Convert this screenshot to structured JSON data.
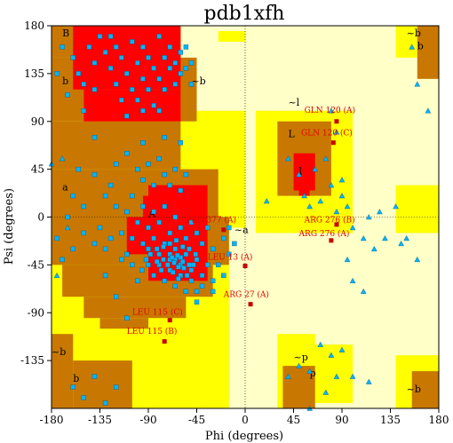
{
  "chart_data": {
    "type": "scatter",
    "title": "pdb1xfh",
    "xlabel": "Phi (degrees)",
    "ylabel": "Psi (degrees)",
    "xlim": [
      -180,
      180
    ],
    "ylim": [
      -180,
      180
    ],
    "xticks": [
      "-180",
      "-135",
      "-90",
      "-45",
      "0",
      "45",
      "90",
      "135",
      "180"
    ],
    "xtick_values": [
      -180,
      -135,
      -90,
      -45,
      0,
      45,
      90,
      135,
      180
    ],
    "yticks": [
      "180",
      "135",
      "90",
      "45",
      "0",
      "-45",
      "-90",
      "-135"
    ],
    "ytick_values": [
      180,
      135,
      90,
      45,
      0,
      -45,
      -90,
      -135
    ],
    "colors": {
      "core": "#ff0000",
      "allowed": "#c87800",
      "generous": "#ffff00",
      "disallowed": "#ffffc8",
      "residue": "#00b4ff",
      "outlier": "#c80000",
      "outlier_text": "#e00000"
    },
    "regions": {
      "generous": [
        [
          -180,
          180,
          -45,
          180
        ],
        [
          -180,
          -180,
          -15,
          90
        ],
        [
          -180,
          -180,
          -30,
          -80
        ],
        [
          -180,
          -135,
          -90,
          -180
        ],
        [
          -30,
          80,
          -15,
          45
        ],
        [
          -45,
          100,
          0,
          30
        ],
        [
          10,
          100,
          100,
          -15
        ],
        [
          30,
          -110,
          65,
          -180
        ],
        [
          60,
          -120,
          100,
          -175
        ],
        [
          140,
          30,
          180,
          -15
        ],
        [
          140,
          180,
          180,
          150
        ],
        [
          140,
          -130,
          180,
          -180
        ],
        [
          -15,
          30,
          0,
          -10
        ],
        [
          -25,
          175,
          0,
          165
        ],
        [
          -170,
          -170,
          -140,
          -180
        ]
      ],
      "allowed": [
        [
          -180,
          180,
          -60,
          150
        ],
        [
          -180,
          150,
          -45,
          90
        ],
        [
          -180,
          90,
          -60,
          45
        ],
        [
          -180,
          45,
          -25,
          0
        ],
        [
          -180,
          0,
          -15,
          -45
        ],
        [
          -170,
          -45,
          -30,
          -75
        ],
        [
          -150,
          -75,
          -55,
          -95
        ],
        [
          -135,
          -95,
          -90,
          -105
        ],
        [
          -180,
          -110,
          -160,
          -180
        ],
        [
          -160,
          -135,
          -105,
          -180
        ],
        [
          -150,
          -165,
          -120,
          -180
        ],
        [
          30,
          90,
          80,
          20
        ],
        [
          35,
          30,
          65,
          20
        ],
        [
          160,
          180,
          180,
          130
        ],
        [
          155,
          -145,
          180,
          -180
        ],
        [
          35,
          -140,
          65,
          -180
        ]
      ],
      "core": [
        [
          -160,
          180,
          -60,
          120
        ],
        [
          -150,
          120,
          -60,
          90
        ],
        [
          -90,
          30,
          -35,
          -60
        ],
        [
          -110,
          0,
          -85,
          -35
        ],
        [
          -95,
          20,
          -60,
          0
        ],
        [
          -45,
          -20,
          -35,
          -60
        ],
        [
          45,
          60,
          65,
          25
        ],
        [
          50,
          35,
          60,
          20
        ]
      ]
    },
    "region_labels": [
      {
        "text": "B",
        "x": -170,
        "y": 170
      },
      {
        "text": "b",
        "x": -170,
        "y": 125
      },
      {
        "text": "~b",
        "x": -50,
        "y": 125
      },
      {
        "text": "~b",
        "x": 150,
        "y": 170
      },
      {
        "text": "b",
        "x": 160,
        "y": 158
      },
      {
        "text": "A",
        "x": -90,
        "y": 0
      },
      {
        "text": "a",
        "x": -170,
        "y": 25
      },
      {
        "text": "~a",
        "x": -10,
        "y": -15
      },
      {
        "text": "L",
        "x": 40,
        "y": 75
      },
      {
        "text": "~l",
        "x": 40,
        "y": 105
      },
      {
        "text": "l",
        "x": 50,
        "y": 40
      },
      {
        "text": "p",
        "x": 60,
        "y": -150
      },
      {
        "text": "~p",
        "x": 45,
        "y": -135
      },
      {
        "text": "~b",
        "x": -180,
        "y": -130
      },
      {
        "text": "b",
        "x": -160,
        "y": -155
      },
      {
        "text": "~b",
        "x": 150,
        "y": -165
      }
    ],
    "series": [
      {
        "marker": "square",
        "points": [
          [
            -170,
            160
          ],
          [
            -160,
            150
          ],
          [
            -155,
            135
          ],
          [
            -150,
            125
          ],
          [
            -145,
            160
          ],
          [
            -140,
            145
          ],
          [
            -140,
            120
          ],
          [
            -135,
            170
          ],
          [
            -130,
            155
          ],
          [
            -125,
            140
          ],
          [
            -120,
            160
          ],
          [
            -120,
            125
          ],
          [
            -115,
            150
          ],
          [
            -115,
            110
          ],
          [
            -110,
            135
          ],
          [
            -105,
            120
          ],
          [
            -105,
            165
          ],
          [
            -100,
            145
          ],
          [
            -100,
            110
          ],
          [
            -95,
            130
          ],
          [
            -95,
            160
          ],
          [
            -90,
            120
          ],
          [
            -90,
            150
          ],
          [
            -85,
            140
          ],
          [
            -85,
            105
          ],
          [
            -80,
            130
          ],
          [
            -80,
            170
          ],
          [
            -75,
            120
          ],
          [
            -75,
            150
          ],
          [
            -70,
            140
          ],
          [
            -70,
            160
          ],
          [
            -65,
            145
          ],
          [
            -65,
            125
          ],
          [
            -60,
            135
          ],
          [
            -60,
            155
          ],
          [
            -55,
            140
          ],
          [
            -55,
            160
          ],
          [
            -50,
            145
          ],
          [
            -50,
            125
          ],
          [
            -110,
            95
          ],
          [
            -95,
            100
          ],
          [
            -80,
            100
          ],
          [
            -125,
            170
          ],
          [
            -150,
            100
          ],
          [
            -175,
            135
          ],
          [
            -165,
            115
          ],
          [
            -100,
            45
          ],
          [
            -95,
            35
          ],
          [
            -90,
            50
          ],
          [
            -85,
            30
          ],
          [
            -80,
            55
          ],
          [
            -75,
            40
          ],
          [
            -70,
            30
          ],
          [
            -65,
            45
          ],
          [
            -60,
            25
          ],
          [
            -55,
            40
          ],
          [
            -60,
            70
          ],
          [
            -75,
            75
          ],
          [
            -95,
            70
          ],
          [
            -105,
            20
          ],
          [
            -110,
            5
          ],
          [
            -120,
            10
          ],
          [
            -115,
            -15
          ],
          [
            -105,
            -20
          ],
          [
            -100,
            -5
          ],
          [
            -95,
            10
          ],
          [
            -90,
            -10
          ],
          [
            -85,
            5
          ],
          [
            -80,
            -5
          ],
          [
            -75,
            10
          ],
          [
            -70,
            -15
          ],
          [
            -65,
            0
          ],
          [
            -60,
            -10
          ],
          [
            -55,
            -20
          ],
          [
            -50,
            -5
          ],
          [
            -45,
            -15
          ],
          [
            -40,
            -25
          ],
          [
            -35,
            -10
          ],
          [
            -30,
            -30
          ],
          [
            -20,
            -20
          ],
          [
            -15,
            -10
          ],
          [
            -10,
            -25
          ],
          [
            -95,
            -25
          ],
          [
            -90,
            -30
          ],
          [
            -85,
            -20
          ],
          [
            -80,
            -35
          ],
          [
            -75,
            -25
          ],
          [
            -70,
            -40
          ],
          [
            -65,
            -30
          ],
          [
            -60,
            -45
          ],
          [
            -55,
            -35
          ],
          [
            -50,
            -50
          ],
          [
            -45,
            -40
          ],
          [
            -40,
            -55
          ],
          [
            -35,
            -45
          ],
          [
            -30,
            -60
          ],
          [
            -90,
            -45
          ],
          [
            -85,
            -55
          ],
          [
            -80,
            -45
          ],
          [
            -75,
            -60
          ],
          [
            -70,
            -50
          ],
          [
            -65,
            -65
          ],
          [
            -60,
            -55
          ],
          [
            -55,
            -70
          ],
          [
            -50,
            -60
          ],
          [
            -45,
            -70
          ],
          [
            -40,
            -65
          ],
          [
            -70,
            -35
          ],
          [
            -65,
            -40
          ],
          [
            -60,
            -38
          ],
          [
            -58,
            -42
          ],
          [
            -62,
            -47
          ],
          [
            -66,
            -43
          ],
          [
            -68,
            -38
          ],
          [
            -63,
            -36
          ],
          [
            -57,
            -48
          ],
          [
            -52,
            -45
          ],
          [
            -72,
            -45
          ],
          [
            -76,
            -40
          ],
          [
            -78,
            -50
          ],
          [
            -82,
            -42
          ],
          [
            -67,
            -52
          ],
          [
            -62,
            -58
          ],
          [
            -54,
            -55
          ],
          [
            -48,
            -45
          ],
          [
            -46,
            -35
          ],
          [
            -52,
            -30
          ],
          [
            -58,
            -28
          ],
          [
            -64,
            -22
          ],
          [
            -70,
            -25
          ],
          [
            -76,
            -28
          ],
          [
            -82,
            -30
          ],
          [
            -88,
            -35
          ],
          [
            -92,
            -40
          ],
          [
            -96,
            -50
          ],
          [
            -100,
            -60
          ],
          [
            -105,
            -45
          ],
          [
            -110,
            -35
          ],
          [
            -115,
            -40
          ],
          [
            -125,
            -20
          ],
          [
            -130,
            -30
          ],
          [
            -135,
            -10
          ],
          [
            -140,
            -25
          ],
          [
            -130,
            20
          ],
          [
            -125,
            30
          ],
          [
            -140,
            40
          ],
          [
            -150,
            10
          ],
          [
            -160,
            20
          ],
          [
            -150,
            -15
          ],
          [
            -160,
            -30
          ],
          [
            -170,
            -40
          ],
          [
            -175,
            -20
          ],
          [
            -165,
            0
          ],
          [
            -155,
            45
          ],
          [
            -120,
            50
          ],
          [
            -110,
            60
          ],
          [
            -140,
            75
          ],
          [
            -130,
            -55
          ],
          [
            -120,
            -75
          ],
          [
            -110,
            -95
          ],
          [
            -45,
            -80
          ],
          [
            -30,
            -70
          ],
          [
            -25,
            -45
          ],
          [
            -20,
            -55
          ],
          [
            -15,
            -35
          ],
          [
            -160,
            -160
          ],
          [
            -150,
            -170
          ],
          [
            -140,
            -150
          ],
          [
            -120,
            -160
          ],
          [
            -130,
            -175
          ]
        ]
      },
      {
        "marker": "triangle",
        "points": [
          [
            -180,
            50
          ],
          [
            -170,
            55
          ],
          [
            -165,
            -10
          ],
          [
            -175,
            -55
          ],
          [
            20,
            15
          ],
          [
            40,
            55
          ],
          [
            50,
            40
          ],
          [
            55,
            20
          ],
          [
            60,
            10
          ],
          [
            65,
            45
          ],
          [
            70,
            15
          ],
          [
            75,
            55
          ],
          [
            80,
            30
          ],
          [
            85,
            5
          ],
          [
            90,
            20
          ],
          [
            95,
            10
          ],
          [
            100,
            -10
          ],
          [
            110,
            -20
          ],
          [
            115,
            0
          ],
          [
            125,
            5
          ],
          [
            140,
            10
          ],
          [
            150,
            -20
          ],
          [
            160,
            -40
          ],
          [
            170,
            100
          ],
          [
            160,
            125
          ],
          [
            155,
            160
          ],
          [
            50,
            -140
          ],
          [
            60,
            -145
          ],
          [
            70,
            -120
          ],
          [
            80,
            -130
          ],
          [
            90,
            -125
          ],
          [
            75,
            -165
          ],
          [
            40,
            -150
          ],
          [
            100,
            -150
          ],
          [
            115,
            -155
          ],
          [
            120,
            -30
          ],
          [
            130,
            -20
          ],
          [
            145,
            -25
          ],
          [
            85,
            -150
          ],
          [
            60,
            -180
          ],
          [
            85,
            80
          ],
          [
            80,
            100
          ],
          [
            90,
            35
          ],
          [
            95,
            -40
          ],
          [
            100,
            -60
          ],
          [
            110,
            -70
          ]
        ]
      }
    ],
    "outliers": [
      {
        "label": "GLN 120 (A)",
        "x": 85,
        "y": 90,
        "lx": 55,
        "ly": 98
      },
      {
        "label": "GLN 120 (C)",
        "x": 82,
        "y": 70,
        "lx": 52,
        "ly": 77
      },
      {
        "label": "PRO 377 (A)",
        "x": -20,
        "y": -12,
        "lx": -55,
        "ly": -5
      },
      {
        "label": "ARG 276 (B)",
        "x": 85,
        "y": -7,
        "lx": 55,
        "ly": -5
      },
      {
        "label": "ARG 276 (A)",
        "x": 80,
        "y": -22,
        "lx": 50,
        "ly": -18
      },
      {
        "label": "LEU 13 (A)",
        "x": 0,
        "y": -46,
        "lx": -35,
        "ly": -40
      },
      {
        "label": "ARG 27 (A)",
        "x": 5,
        "y": -82,
        "lx": -20,
        "ly": -75
      },
      {
        "label": "LEU 115 (C)",
        "x": -70,
        "y": -97,
        "lx": -105,
        "ly": -92
      },
      {
        "label": "LEU 115 (B)",
        "x": -75,
        "y": -117,
        "lx": -110,
        "ly": -110
      }
    ]
  }
}
